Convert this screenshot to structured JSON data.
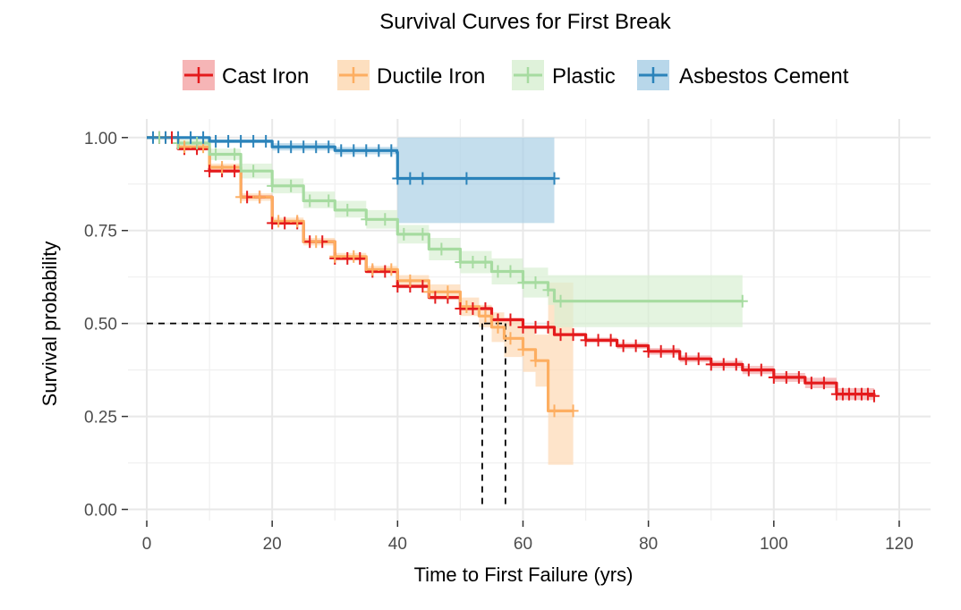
{
  "chart_data": {
    "type": "line",
    "title": "Survival Curves for First Break",
    "xlabel": "Time to First Failure (yrs)",
    "ylabel": "Survival probability",
    "xlim": [
      -3,
      125
    ],
    "ylim": [
      -0.03,
      1.05
    ],
    "x_ticks": [
      "0",
      "20",
      "40",
      "60",
      "80",
      "100",
      "120"
    ],
    "y_ticks": [
      "0.00",
      "0.25",
      "0.50",
      "0.75",
      "1.00"
    ],
    "grid": true,
    "legend_position": "top",
    "median_line": {
      "y": 0.5,
      "x": [
        53.5,
        57.2
      ]
    },
    "series": [
      {
        "name": "Cast Iron",
        "color": "#e41a1c",
        "band_color": "#f4a8a9",
        "x": [
          0,
          5,
          10,
          15,
          20,
          25,
          30,
          35,
          40,
          45,
          50,
          55,
          60,
          65,
          70,
          75,
          80,
          85,
          90,
          95,
          100,
          105,
          110,
          116
        ],
        "y": [
          1.0,
          0.97,
          0.91,
          0.84,
          0.77,
          0.72,
          0.675,
          0.64,
          0.6,
          0.57,
          0.54,
          0.51,
          0.49,
          0.47,
          0.455,
          0.44,
          0.425,
          0.405,
          0.39,
          0.375,
          0.355,
          0.34,
          0.31,
          0.305
        ],
        "lower": [
          1.0,
          0.965,
          0.905,
          0.835,
          0.765,
          0.715,
          0.67,
          0.635,
          0.595,
          0.565,
          0.535,
          0.505,
          0.485,
          0.465,
          0.448,
          0.432,
          0.416,
          0.396,
          0.38,
          0.364,
          0.343,
          0.326,
          0.294,
          0.286
        ],
        "upper": [
          1.0,
          0.975,
          0.915,
          0.845,
          0.775,
          0.725,
          0.68,
          0.645,
          0.605,
          0.575,
          0.545,
          0.515,
          0.495,
          0.475,
          0.462,
          0.448,
          0.434,
          0.414,
          0.4,
          0.386,
          0.367,
          0.354,
          0.326,
          0.324
        ]
      },
      {
        "name": "Ductile Iron",
        "color": "#fdae61",
        "band_color": "#fdd9b4",
        "x": [
          0,
          5,
          10,
          15,
          20,
          25,
          30,
          35,
          40,
          45,
          50,
          53,
          55,
          57,
          60,
          62,
          64,
          64.01,
          68
        ],
        "y": [
          1.0,
          0.975,
          0.92,
          0.84,
          0.775,
          0.72,
          0.68,
          0.645,
          0.615,
          0.585,
          0.545,
          0.52,
          0.49,
          0.46,
          0.43,
          0.4,
          0.4,
          0.265,
          0.265
        ],
        "lower": [
          1.0,
          0.97,
          0.91,
          0.83,
          0.765,
          0.71,
          0.67,
          0.635,
          0.6,
          0.565,
          0.52,
          0.49,
          0.45,
          0.41,
          0.37,
          0.33,
          0.33,
          0.12,
          0.12
        ],
        "upper": [
          1.0,
          0.98,
          0.93,
          0.85,
          0.785,
          0.73,
          0.69,
          0.655,
          0.63,
          0.605,
          0.57,
          0.55,
          0.53,
          0.51,
          0.49,
          0.47,
          0.47,
          0.61,
          0.61
        ]
      },
      {
        "name": "Plastic",
        "color": "#a6dba0",
        "band_color": "#d9f0d3",
        "x": [
          0,
          5,
          10,
          15,
          20,
          25,
          30,
          35,
          40,
          45,
          50,
          55,
          60,
          64,
          65,
          95
        ],
        "y": [
          1.0,
          0.985,
          0.955,
          0.91,
          0.87,
          0.83,
          0.805,
          0.78,
          0.74,
          0.7,
          0.665,
          0.64,
          0.61,
          0.59,
          0.56,
          0.56
        ],
        "lower": [
          1.0,
          0.975,
          0.94,
          0.89,
          0.85,
          0.81,
          0.785,
          0.755,
          0.715,
          0.67,
          0.635,
          0.605,
          0.57,
          0.55,
          0.49,
          0.49
        ],
        "upper": [
          1.0,
          0.995,
          0.97,
          0.93,
          0.89,
          0.855,
          0.83,
          0.805,
          0.765,
          0.73,
          0.695,
          0.675,
          0.65,
          0.63,
          0.63,
          0.63
        ]
      },
      {
        "name": "Asbestos Cement",
        "color": "#2b83ba",
        "band_color": "#abd0e6",
        "x": [
          0,
          10,
          20,
          30,
          39.9,
          40,
          65
        ],
        "y": [
          1.0,
          0.99,
          0.975,
          0.965,
          0.96,
          0.89,
          0.89
        ],
        "lower": [
          1.0,
          0.985,
          0.965,
          0.955,
          0.945,
          0.77,
          0.77
        ],
        "upper": [
          1.0,
          0.995,
          0.985,
          0.975,
          0.975,
          1.0,
          1.0
        ]
      }
    ],
    "censor_marks": {
      "Cast Iron": [
        2,
        4,
        6,
        8,
        10,
        12,
        14,
        16,
        18,
        20,
        22,
        24,
        26,
        28,
        30,
        32,
        34,
        36,
        38,
        40,
        42,
        44,
        46,
        48,
        50,
        52,
        54,
        56,
        58,
        60,
        62,
        64,
        66,
        68,
        70,
        72,
        74,
        76,
        78,
        80,
        82,
        84,
        86,
        88,
        90,
        92,
        94,
        96,
        98,
        100,
        102,
        104,
        106,
        108,
        110,
        111,
        112,
        113,
        114,
        115,
        116
      ],
      "Ductile Iron": [
        3,
        6,
        9,
        12,
        15,
        18,
        21,
        24,
        27,
        30,
        33,
        36,
        39,
        42,
        45,
        48,
        51,
        54,
        56,
        58,
        60,
        62,
        65,
        68
      ],
      "Plastic": [
        2,
        5,
        8,
        11,
        14,
        17,
        20,
        23,
        26,
        29,
        32,
        35,
        38,
        41,
        44,
        47,
        50,
        52,
        54,
        56,
        58,
        60,
        62,
        64,
        66,
        95
      ],
      "Asbestos Cement": [
        1,
        3,
        5,
        7,
        9,
        11,
        13,
        15,
        17,
        19,
        21,
        23,
        25,
        27,
        29,
        31,
        33,
        35,
        37,
        39,
        40,
        42,
        44,
        51,
        65
      ]
    }
  }
}
